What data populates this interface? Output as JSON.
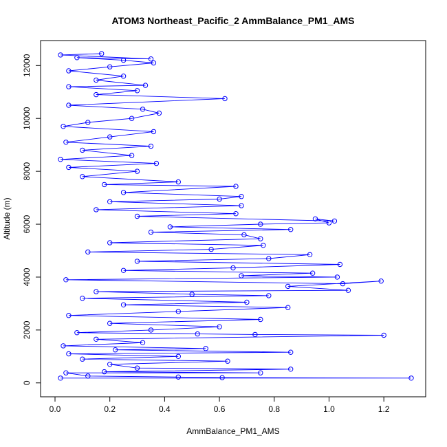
{
  "chart_data": {
    "type": "scatter",
    "title": "ATOM3 Northeast_Pacific_2 AmmBalance_PM1_AMS",
    "xlabel": "AmmBalance_PM1_AMS",
    "ylabel": "Altitude (m)",
    "xlim": [
      0,
      1.3
    ],
    "ylim": [
      150,
      12450
    ],
    "x_ticks": [
      0.0,
      0.2,
      0.4,
      0.6,
      0.8,
      1.0,
      1.2
    ],
    "x_tick_labels": [
      "0.0",
      "0.2",
      "0.4",
      "0.6",
      "0.8",
      "1.0",
      "1.2"
    ],
    "y_ticks": [
      0,
      2000,
      4000,
      6000,
      8000,
      10000,
      12000
    ],
    "y_tick_labels": [
      "0",
      "2000",
      "4000",
      "6000",
      "8000",
      "10000",
      "12000"
    ],
    "grid": false,
    "series_color": "#0000ff",
    "marker": "open-circle",
    "connect_points": true,
    "series": [
      {
        "points": [
          [
            0.02,
            180
          ],
          [
            1.3,
            180
          ],
          [
            0.61,
            200
          ],
          [
            0.45,
            220
          ],
          [
            0.12,
            260
          ],
          [
            0.04,
            380
          ],
          [
            0.75,
            380
          ],
          [
            0.18,
            420
          ],
          [
            0.86,
            520
          ],
          [
            0.3,
            560
          ],
          [
            0.2,
            700
          ],
          [
            0.63,
            820
          ],
          [
            0.1,
            900
          ],
          [
            0.45,
            1000
          ],
          [
            0.05,
            1100
          ],
          [
            0.86,
            1160
          ],
          [
            0.22,
            1250
          ],
          [
            0.55,
            1300
          ],
          [
            0.03,
            1400
          ],
          [
            0.32,
            1520
          ],
          [
            0.15,
            1650
          ],
          [
            1.2,
            1800
          ],
          [
            0.73,
            1830
          ],
          [
            0.52,
            1850
          ],
          [
            0.08,
            1900
          ],
          [
            0.35,
            2000
          ],
          [
            0.6,
            2120
          ],
          [
            0.2,
            2250
          ],
          [
            0.75,
            2400
          ],
          [
            0.05,
            2550
          ],
          [
            0.45,
            2700
          ],
          [
            0.85,
            2850
          ],
          [
            0.25,
            2950
          ],
          [
            0.7,
            3050
          ],
          [
            0.1,
            3200
          ],
          [
            0.78,
            3300
          ],
          [
            0.5,
            3350
          ],
          [
            0.15,
            3450
          ],
          [
            1.07,
            3500
          ],
          [
            0.85,
            3650
          ],
          [
            1.19,
            3850
          ],
          [
            1.05,
            3750
          ],
          [
            0.04,
            3900
          ],
          [
            1.03,
            4000
          ],
          [
            0.68,
            4050
          ],
          [
            0.94,
            4150
          ],
          [
            0.25,
            4250
          ],
          [
            0.65,
            4350
          ],
          [
            1.04,
            4480
          ],
          [
            0.3,
            4600
          ],
          [
            0.78,
            4700
          ],
          [
            0.93,
            4850
          ],
          [
            0.12,
            4950
          ],
          [
            0.57,
            5050
          ],
          [
            0.76,
            5200
          ],
          [
            0.2,
            5300
          ],
          [
            0.75,
            5450
          ],
          [
            0.69,
            5600
          ],
          [
            0.35,
            5700
          ],
          [
            0.86,
            5800
          ],
          [
            0.42,
            5900
          ],
          [
            0.75,
            6000
          ],
          [
            1.0,
            6050
          ],
          [
            0.95,
            6200
          ],
          [
            1.02,
            6120
          ],
          [
            0.3,
            6300
          ],
          [
            0.66,
            6400
          ],
          [
            0.15,
            6550
          ],
          [
            0.68,
            6700
          ],
          [
            0.2,
            6850
          ],
          [
            0.6,
            6950
          ],
          [
            0.68,
            7050
          ],
          [
            0.25,
            7200
          ],
          [
            0.66,
            7430
          ],
          [
            0.18,
            7500
          ],
          [
            0.45,
            7600
          ],
          [
            0.1,
            7800
          ],
          [
            0.3,
            8000
          ],
          [
            0.05,
            8150
          ],
          [
            0.37,
            8300
          ],
          [
            0.02,
            8450
          ],
          [
            0.28,
            8600
          ],
          [
            0.1,
            8800
          ],
          [
            0.35,
            8950
          ],
          [
            0.04,
            9100
          ],
          [
            0.2,
            9300
          ],
          [
            0.36,
            9500
          ],
          [
            0.03,
            9700
          ],
          [
            0.12,
            9850
          ],
          [
            0.28,
            10000
          ],
          [
            0.38,
            10200
          ],
          [
            0.32,
            10350
          ],
          [
            0.05,
            10500
          ],
          [
            0.62,
            10750
          ],
          [
            0.15,
            10900
          ],
          [
            0.3,
            11050
          ],
          [
            0.05,
            11200
          ],
          [
            0.33,
            11250
          ],
          [
            0.15,
            11450
          ],
          [
            0.25,
            11600
          ],
          [
            0.05,
            11800
          ],
          [
            0.2,
            11950
          ],
          [
            0.36,
            12100
          ],
          [
            0.25,
            12200
          ],
          [
            0.08,
            12300
          ],
          [
            0.35,
            12250
          ],
          [
            0.02,
            12400
          ],
          [
            0.17,
            12450
          ]
        ]
      }
    ]
  }
}
